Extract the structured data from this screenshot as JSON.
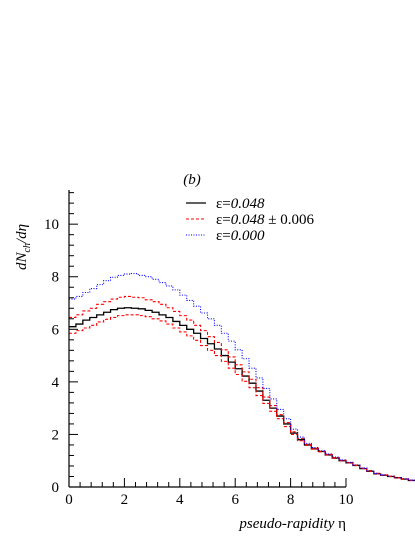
{
  "chart_data": {
    "type": "line",
    "panel_label": "(b)",
    "xlabel": "pseudo-rapidity η",
    "ylabel": "dN_ch/dη",
    "xlim": [
      0,
      10
    ],
    "ylim": [
      0,
      11.3
    ],
    "x_ticks": [
      0,
      2,
      4,
      6,
      8,
      10
    ],
    "y_ticks": [
      0,
      2,
      4,
      6,
      8,
      10
    ],
    "grid": false,
    "legend_position": "top-right",
    "bin_width": 0.25,
    "bin_edges_start": 0,
    "series": [
      {
        "name": "ε=0.048",
        "color": "#000000",
        "style": "solid",
        "values": [
          6.1,
          6.2,
          6.35,
          6.45,
          6.55,
          6.65,
          6.75,
          6.8,
          6.82,
          6.8,
          6.78,
          6.72,
          6.65,
          6.55,
          6.45,
          6.3,
          6.15,
          6.0,
          5.85,
          5.65,
          5.45,
          5.25,
          5.0,
          4.75,
          4.5,
          4.22,
          3.95,
          3.65,
          3.3,
          3.0,
          2.7,
          2.4,
          2.05,
          1.8,
          1.6,
          1.45,
          1.35,
          1.22,
          1.1,
          1.0,
          0.92,
          0.82,
          0.7,
          0.6,
          0.5,
          0.45,
          0.4,
          0.35,
          0.3,
          0.25
        ]
      },
      {
        "name": "ε=0.048 ± 0.006",
        "color": "#ff0000",
        "style": "dashed",
        "values": [
          6.45,
          6.55,
          6.7,
          6.8,
          6.95,
          7.05,
          7.15,
          7.22,
          7.25,
          7.22,
          7.2,
          7.12,
          7.05,
          6.95,
          6.82,
          6.68,
          6.52,
          6.35,
          6.15,
          5.95,
          5.72,
          5.5,
          5.22,
          4.95,
          4.65,
          4.38,
          4.1,
          3.78,
          3.42,
          3.1,
          2.75,
          2.45,
          2.1,
          1.85,
          1.62,
          1.48,
          1.36,
          1.24,
          1.12,
          1.02,
          0.93,
          0.83,
          0.72,
          0.62,
          0.52,
          0.46,
          0.41,
          0.36,
          0.31,
          0.26
        ]
      },
      {
        "name": "",
        "color": "#ff0000",
        "style": "dashed",
        "values": [
          5.85,
          5.95,
          6.05,
          6.15,
          6.28,
          6.38,
          6.45,
          6.52,
          6.55,
          6.55,
          6.52,
          6.48,
          6.4,
          6.32,
          6.2,
          6.05,
          5.9,
          5.75,
          5.58,
          5.38,
          5.2,
          5.0,
          4.78,
          4.52,
          4.28,
          4.02,
          3.78,
          3.48,
          3.18,
          2.88,
          2.6,
          2.3,
          2.0,
          1.76,
          1.58,
          1.44,
          1.34,
          1.22,
          1.1,
          1.0,
          0.92,
          0.82,
          0.7,
          0.6,
          0.5,
          0.45,
          0.4,
          0.35,
          0.3,
          0.25
        ]
      },
      {
        "name": "ε=0.000",
        "color": "#0000ff",
        "style": "dotted",
        "values": [
          7.15,
          7.25,
          7.4,
          7.55,
          7.7,
          7.85,
          7.98,
          8.05,
          8.1,
          8.12,
          8.05,
          8.0,
          7.9,
          7.78,
          7.65,
          7.5,
          7.3,
          7.1,
          6.88,
          6.62,
          6.4,
          6.15,
          5.85,
          5.55,
          5.22,
          4.88,
          4.52,
          4.15,
          3.75,
          3.35,
          2.95,
          2.6,
          2.2,
          1.9,
          1.66,
          1.5,
          1.38,
          1.26,
          1.14,
          1.03,
          0.94,
          0.84,
          0.72,
          0.62,
          0.52,
          0.46,
          0.41,
          0.36,
          0.31,
          0.26
        ]
      }
    ]
  }
}
